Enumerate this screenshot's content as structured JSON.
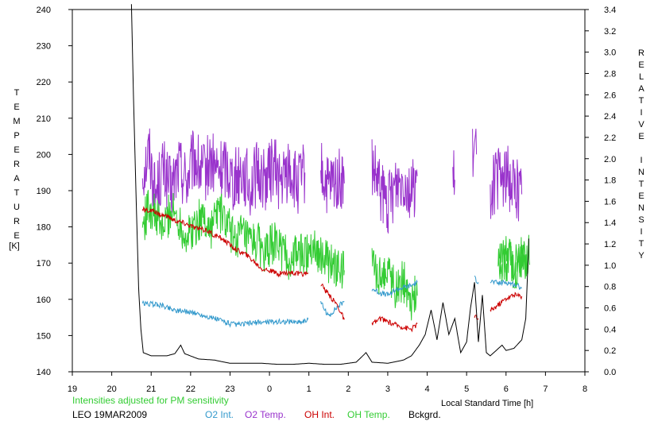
{
  "chart_data": {
    "type": "line",
    "left_axis": {
      "label": "TEMPERATURE",
      "unit": "[K]",
      "ylim": [
        140,
        240
      ],
      "ticks": [
        "140",
        "150",
        "160",
        "170",
        "180",
        "190",
        "200",
        "210",
        "220",
        "230",
        "240"
      ]
    },
    "right_axis": {
      "label": "RELATIVE INTENSITY",
      "ylim": [
        0.0,
        3.4
      ],
      "ticks": [
        "0.0",
        "0.2",
        "0.4",
        "0.6",
        "0.8",
        "1.0",
        "1.2",
        "1.4",
        "1.6",
        "1.8",
        "2.0",
        "2.2",
        "2.4",
        "2.6",
        "2.8",
        "3.0",
        "3.2",
        "3.4"
      ]
    },
    "x_axis": {
      "label": "Local Standard Time [h]",
      "xlim": [
        19,
        32
      ],
      "ticks": [
        "19",
        "20",
        "21",
        "22",
        "23",
        "0",
        "1",
        "2",
        "3",
        "4",
        "5",
        "6",
        "7",
        "8"
      ]
    },
    "note": "Intensities adjusted for PM sensitivity",
    "station": "LEO 19MAR2009",
    "grid": false,
    "legend_position": "bottom",
    "series": [
      {
        "name": "O2 Temp.",
        "axis": "left",
        "color": "#9933cc",
        "segments": [
          [
            [
              20.78,
              195
            ],
            [
              20.95,
              201
            ],
            [
              21.1,
              189
            ],
            [
              21.3,
              196
            ],
            [
              21.5,
              190
            ],
            [
              21.7,
              197
            ],
            [
              21.9,
              193
            ],
            [
              22.1,
              199
            ],
            [
              22.3,
              194
            ],
            [
              22.5,
              198
            ],
            [
              22.7,
              195
            ],
            [
              22.9,
              197
            ],
            [
              23.1,
              193
            ],
            [
              23.3,
              196
            ],
            [
              23.5,
              191
            ],
            [
              23.7,
              195
            ],
            [
              23.9,
              193
            ],
            [
              24.1,
              197
            ],
            [
              24.3,
              192
            ],
            [
              24.5,
              196
            ],
            [
              24.7,
              191
            ],
            [
              24.9,
              195
            ]
          ],
          [
            [
              25.3,
              195
            ],
            [
              25.5,
              190
            ],
            [
              25.7,
              193
            ],
            [
              25.9,
              192
            ]
          ],
          [
            [
              26.6,
              196
            ],
            [
              26.8,
              190
            ],
            [
              27.0,
              186
            ],
            [
              27.2,
              192
            ],
            [
              27.4,
              194
            ],
            [
              27.6,
              189
            ],
            [
              27.75,
              194
            ]
          ],
          [
            [
              28.65,
              192
            ],
            [
              28.7,
              193
            ]
          ],
          [
            [
              29.15,
              199
            ],
            [
              29.25,
              200
            ]
          ],
          [
            [
              29.6,
              191
            ],
            [
              29.8,
              193
            ],
            [
              30.0,
              194
            ],
            [
              30.2,
              192
            ],
            [
              30.4,
              189
            ]
          ]
        ]
      },
      {
        "name": "OH Temp.",
        "axis": "left",
        "color": "#33cc33",
        "segments": [
          [
            [
              20.78,
              180
            ],
            [
              20.95,
              186
            ],
            [
              21.1,
              183
            ],
            [
              21.3,
              179
            ],
            [
              21.5,
              185
            ],
            [
              21.7,
              182
            ],
            [
              21.9,
              177
            ],
            [
              22.1,
              180
            ],
            [
              22.3,
              183
            ],
            [
              22.5,
              179
            ],
            [
              22.7,
              185
            ],
            [
              22.9,
              181
            ],
            [
              23.1,
              177
            ],
            [
              23.3,
              178
            ],
            [
              23.5,
              175
            ],
            [
              23.7,
              176
            ],
            [
              23.9,
              172
            ],
            [
              24.1,
              176
            ],
            [
              24.3,
              174
            ],
            [
              24.5,
              170
            ],
            [
              24.7,
              173
            ],
            [
              24.9,
              172
            ],
            [
              25.1,
              176
            ],
            [
              25.3,
              172
            ],
            [
              25.5,
              170
            ],
            [
              25.7,
              168
            ],
            [
              25.9,
              168
            ]
          ],
          [
            [
              26.6,
              171
            ],
            [
              26.8,
              166
            ],
            [
              27.0,
              169
            ],
            [
              27.2,
              163
            ],
            [
              27.4,
              165
            ],
            [
              27.6,
              160
            ],
            [
              27.75,
              161
            ]
          ],
          [
            [
              30.6,
              172
            ],
            [
              29.8,
              170
            ],
            [
              30.0,
              173
            ],
            [
              30.2,
              167
            ],
            [
              30.4,
              171
            ],
            [
              30.5,
              170
            ]
          ]
        ]
      },
      {
        "name": "O2 Int.",
        "axis": "right",
        "color": "#3399cc",
        "segments": [
          [
            [
              20.78,
              0.64
            ],
            [
              21.2,
              0.63
            ],
            [
              21.6,
              0.58
            ],
            [
              22.0,
              0.56
            ],
            [
              22.4,
              0.52
            ],
            [
              22.8,
              0.48
            ],
            [
              23.0,
              0.45
            ],
            [
              23.2,
              0.44
            ],
            [
              23.6,
              0.46
            ],
            [
              24.0,
              0.47
            ],
            [
              24.4,
              0.47
            ],
            [
              24.8,
              0.47
            ],
            [
              24.98,
              0.49
            ]
          ],
          [
            [
              25.3,
              0.65
            ],
            [
              25.5,
              0.52
            ],
            [
              25.7,
              0.6
            ],
            [
              25.9,
              0.66
            ]
          ],
          [
            [
              26.6,
              0.78
            ],
            [
              26.8,
              0.74
            ],
            [
              27.0,
              0.72
            ],
            [
              27.2,
              0.77
            ],
            [
              27.4,
              0.79
            ],
            [
              27.6,
              0.81
            ],
            [
              27.75,
              0.84
            ]
          ],
          [
            [
              29.2,
              0.88
            ],
            [
              29.3,
              0.84
            ]
          ],
          [
            [
              29.6,
              0.85
            ],
            [
              29.8,
              0.83
            ],
            [
              30.0,
              0.84
            ],
            [
              30.2,
              0.82
            ],
            [
              30.4,
              0.79
            ]
          ]
        ]
      },
      {
        "name": "OH Int.",
        "axis": "right",
        "color": "#cc0000",
        "segments": [
          [
            [
              20.78,
              1.52
            ],
            [
              21.0,
              1.51
            ],
            [
              21.2,
              1.48
            ],
            [
              21.4,
              1.46
            ],
            [
              21.6,
              1.42
            ],
            [
              21.8,
              1.4
            ],
            [
              22.0,
              1.37
            ],
            [
              22.2,
              1.34
            ],
            [
              22.4,
              1.33
            ],
            [
              22.6,
              1.28
            ],
            [
              22.8,
              1.25
            ],
            [
              23.0,
              1.19
            ],
            [
              23.2,
              1.14
            ],
            [
              23.4,
              1.1
            ],
            [
              23.6,
              1.04
            ],
            [
              23.8,
              0.97
            ],
            [
              24.0,
              0.95
            ],
            [
              24.2,
              0.92
            ],
            [
              24.4,
              0.93
            ],
            [
              24.6,
              0.93
            ],
            [
              24.8,
              0.91
            ],
            [
              24.98,
              0.93
            ]
          ],
          [
            [
              25.3,
              0.83
            ],
            [
              25.5,
              0.72
            ],
            [
              25.7,
              0.64
            ],
            [
              25.9,
              0.49
            ]
          ],
          [
            [
              26.6,
              0.44
            ],
            [
              26.8,
              0.5
            ],
            [
              27.0,
              0.47
            ],
            [
              27.2,
              0.44
            ],
            [
              27.4,
              0.42
            ],
            [
              27.6,
              0.4
            ],
            [
              27.75,
              0.45
            ]
          ],
          [
            [
              29.2,
              0.52
            ],
            [
              29.3,
              0.5
            ]
          ],
          [
            [
              29.6,
              0.57
            ],
            [
              29.8,
              0.63
            ],
            [
              30.0,
              0.69
            ],
            [
              30.2,
              0.72
            ],
            [
              30.4,
              0.71
            ]
          ]
        ]
      },
      {
        "name": "Bckgrd.",
        "axis": "right",
        "color": "#000000",
        "segments": [
          [
            [
              20.5,
              3.45
            ],
            [
              20.55,
              2.6
            ],
            [
              20.62,
              1.6
            ],
            [
              20.68,
              0.8
            ],
            [
              20.74,
              0.4
            ],
            [
              20.8,
              0.18
            ],
            [
              21.0,
              0.15
            ],
            [
              21.4,
              0.15
            ],
            [
              21.6,
              0.17
            ],
            [
              21.75,
              0.25
            ],
            [
              21.85,
              0.17
            ],
            [
              22.2,
              0.12
            ],
            [
              22.6,
              0.11
            ],
            [
              23.0,
              0.08
            ],
            [
              23.4,
              0.08
            ],
            [
              23.8,
              0.08
            ],
            [
              24.2,
              0.07
            ],
            [
              24.6,
              0.07
            ],
            [
              25.0,
              0.08
            ],
            [
              25.4,
              0.07
            ],
            [
              25.8,
              0.07
            ],
            [
              26.2,
              0.09
            ],
            [
              26.45,
              0.18
            ],
            [
              26.6,
              0.09
            ],
            [
              27.0,
              0.08
            ],
            [
              27.4,
              0.11
            ],
            [
              27.6,
              0.15
            ],
            [
              27.8,
              0.25
            ],
            [
              27.95,
              0.35
            ],
            [
              28.1,
              0.58
            ],
            [
              28.25,
              0.3
            ],
            [
              28.4,
              0.65
            ],
            [
              28.55,
              0.35
            ],
            [
              28.7,
              0.5
            ],
            [
              28.85,
              0.18
            ],
            [
              29.0,
              0.28
            ],
            [
              29.1,
              0.6
            ],
            [
              29.2,
              0.84
            ],
            [
              29.3,
              0.28
            ],
            [
              29.4,
              0.72
            ],
            [
              29.5,
              0.18
            ],
            [
              29.6,
              0.15
            ],
            [
              29.75,
              0.2
            ],
            [
              29.9,
              0.25
            ],
            [
              30.0,
              0.2
            ],
            [
              30.2,
              0.22
            ],
            [
              30.4,
              0.3
            ],
            [
              30.5,
              0.5
            ],
            [
              30.58,
              1.25
            ]
          ]
        ]
      }
    ]
  }
}
